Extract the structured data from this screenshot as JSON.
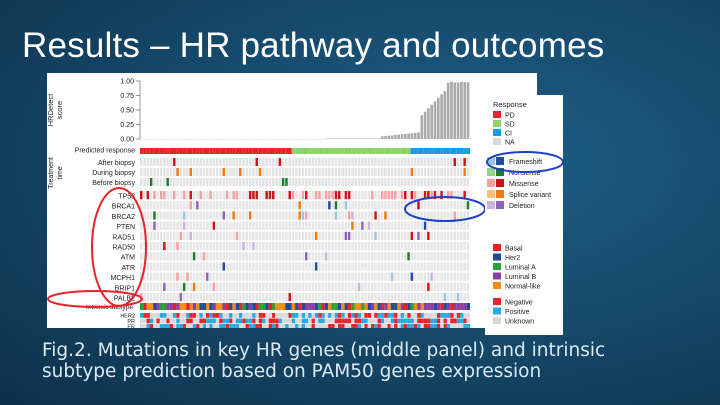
{
  "slide": {
    "title": "Results – HR pathway and outcomes",
    "caption_line1": "Fig.2. Mutations in key HR genes (middle panel) and intrinsic",
    "caption_line2": "subtype prediction based on PAM50 genes expression"
  },
  "figure": {
    "top_panel": {
      "ylabel": "HRDetect\nscore",
      "yticks": [
        "1.00",
        "0.75",
        "0.50",
        "0.25",
        "0.00"
      ]
    },
    "predicted_response_label": "Predicted response",
    "treatment_label": "Treatment\ntime",
    "treatment_rows": [
      "After biopsy",
      "During biopsy",
      "Before biopsy"
    ],
    "genes": [
      "TP53",
      "BRCA1",
      "BRCA2",
      "PTEN",
      "RAD51",
      "RAD50",
      "ATM",
      "ATR",
      "MCPH1",
      "BRIP1",
      "PALB2"
    ],
    "side_label": "Somatic\nGermline",
    "subtype_label": "Intrinsic subtype",
    "receptor_rows": [
      "HER2",
      "PR",
      "ER"
    ],
    "legends": {
      "response": {
        "title": "Response",
        "items": [
          {
            "label": "PD",
            "color": "#e8232b"
          },
          {
            "label": "SD",
            "color": "#8fd26b"
          },
          {
            "label": "CI",
            "color": "#1e9be0"
          },
          {
            "label": "NA",
            "color": "#d9d9d9"
          }
        ]
      },
      "mutation": {
        "items": [
          {
            "label": "Frameshift",
            "colors": [
              "#9cc3e5",
              "#1f4e9c"
            ]
          },
          {
            "label": "Nonsense",
            "colors": [
              "#95d38a",
              "#1f7a2e"
            ]
          },
          {
            "label": "Missense",
            "colors": [
              "#f2a0a0",
              "#d0121b"
            ]
          },
          {
            "label": "Splice variant",
            "colors": [
              "#f7c27c",
              "#f07b12"
            ]
          },
          {
            "label": "Deletion",
            "colors": [
              "#cbb3e0",
              "#8e63b8"
            ]
          }
        ]
      },
      "subtype": {
        "items": [
          {
            "label": "Basal",
            "color": "#e3232a"
          },
          {
            "label": "Her2",
            "color": "#234a9b"
          },
          {
            "label": "Luminal A",
            "color": "#2e9e3a"
          },
          {
            "label": "Luminal B",
            "color": "#8a3fa2"
          },
          {
            "label": "Normal-like",
            "color": "#f28a1c"
          }
        ]
      },
      "receptor": {
        "items": [
          {
            "label": "Negative",
            "color": "#e8232b"
          },
          {
            "label": "Positive",
            "color": "#27a9e1"
          },
          {
            "label": "Unknown",
            "color": "#d9d9d9"
          }
        ]
      }
    }
  }
}
